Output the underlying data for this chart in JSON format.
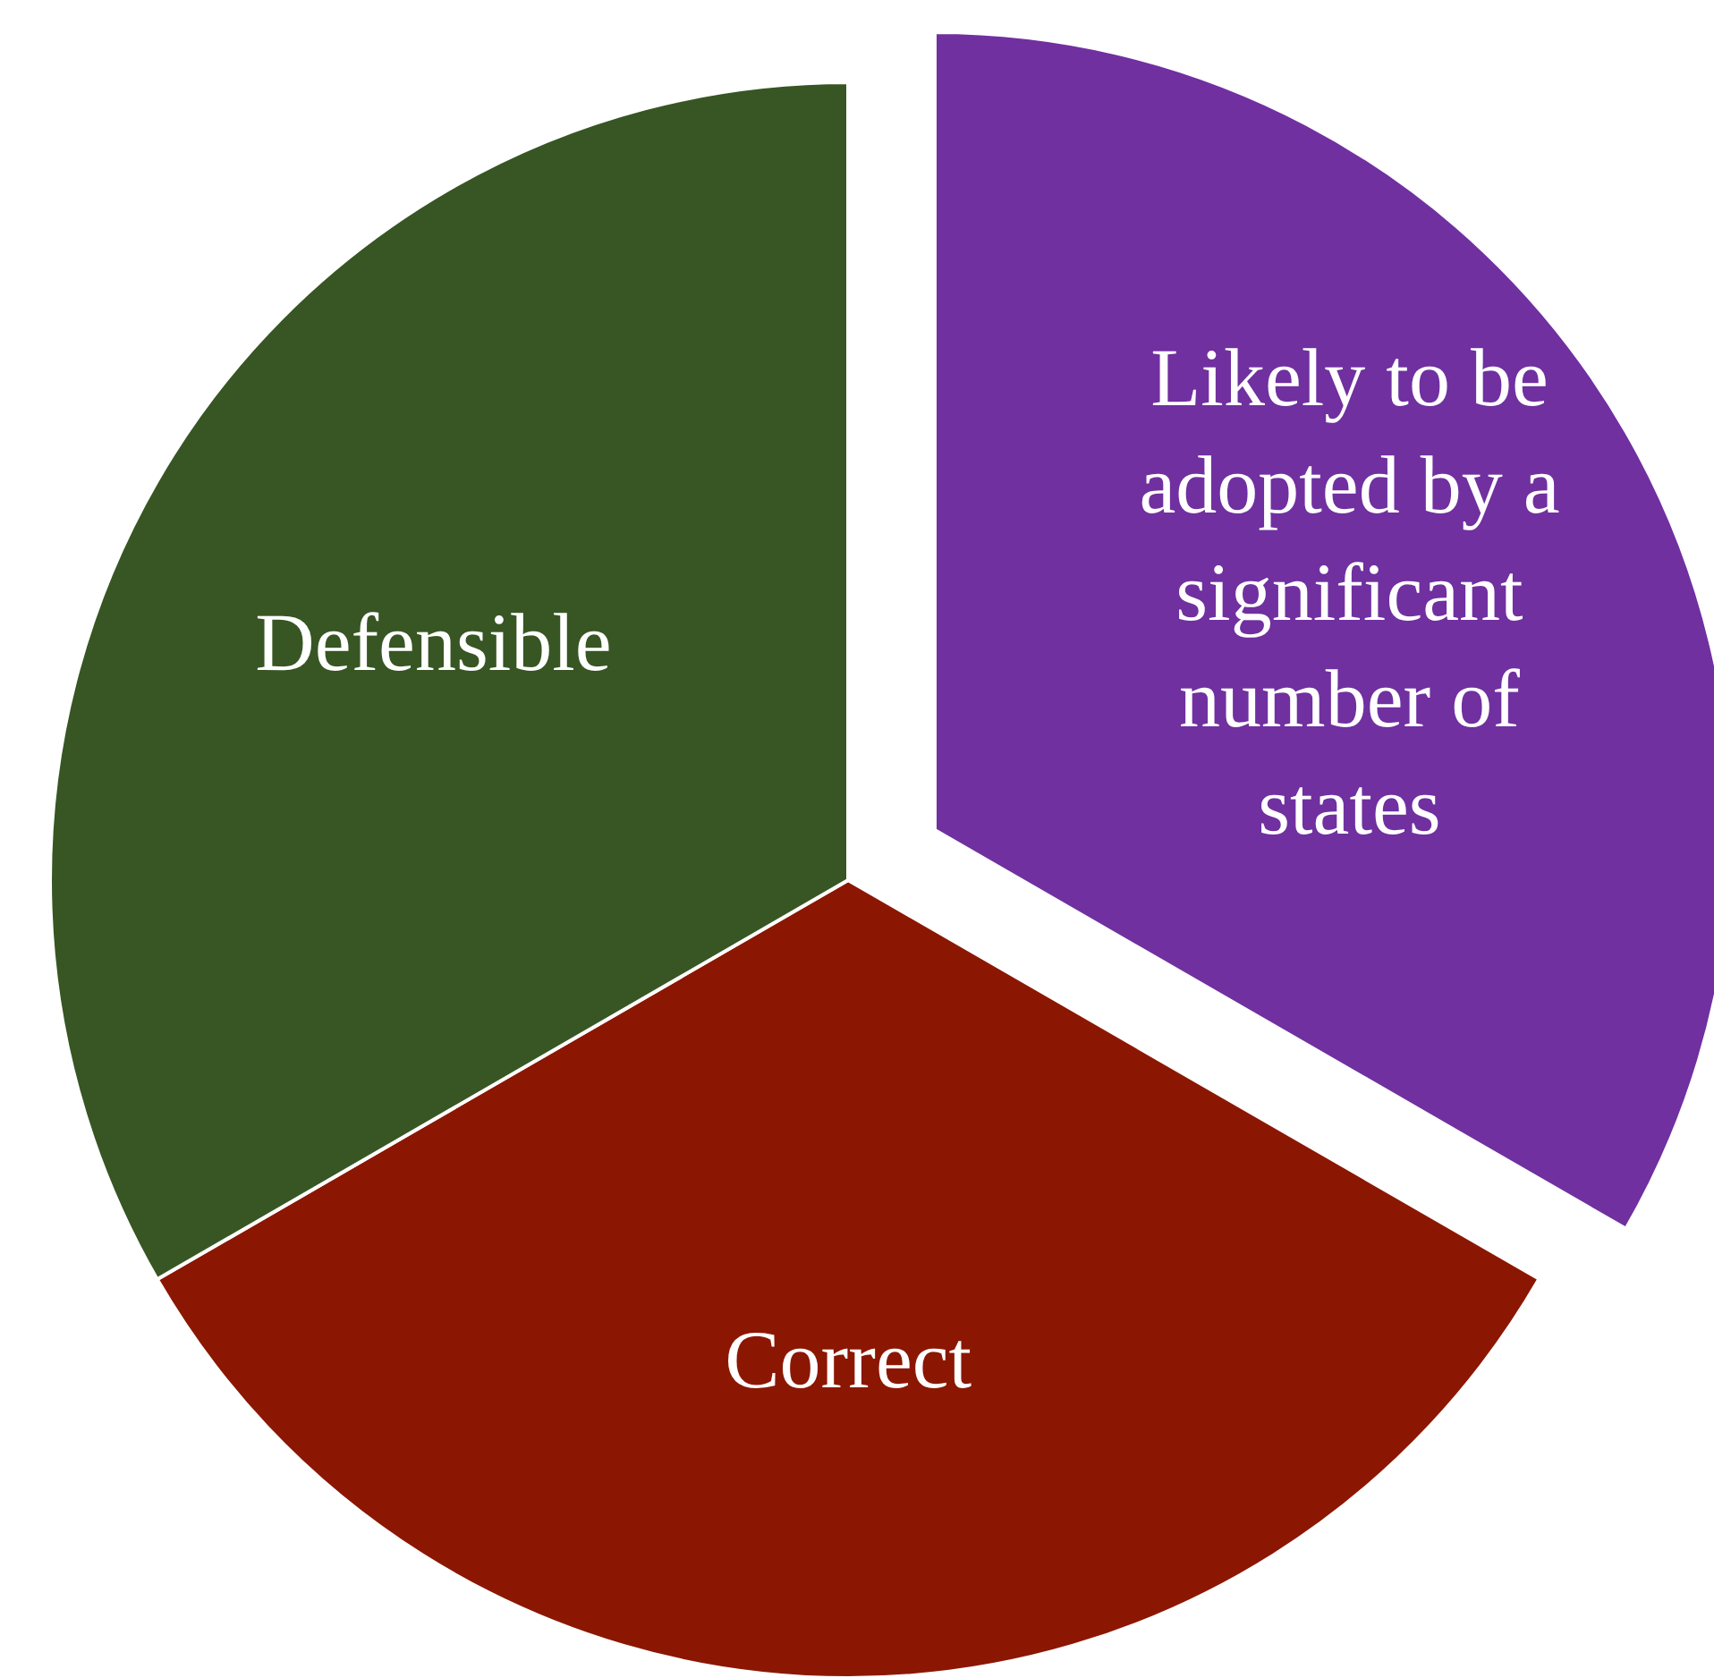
{
  "chart_data": {
    "type": "pie",
    "categories": [
      "Likely to be adopted by a significant number of states",
      "Correct",
      "Defensible"
    ],
    "values": [
      33.33,
      33.33,
      33.34
    ],
    "colors": [
      "#7030a0",
      "#8b1702",
      "#375623"
    ]
  }
}
